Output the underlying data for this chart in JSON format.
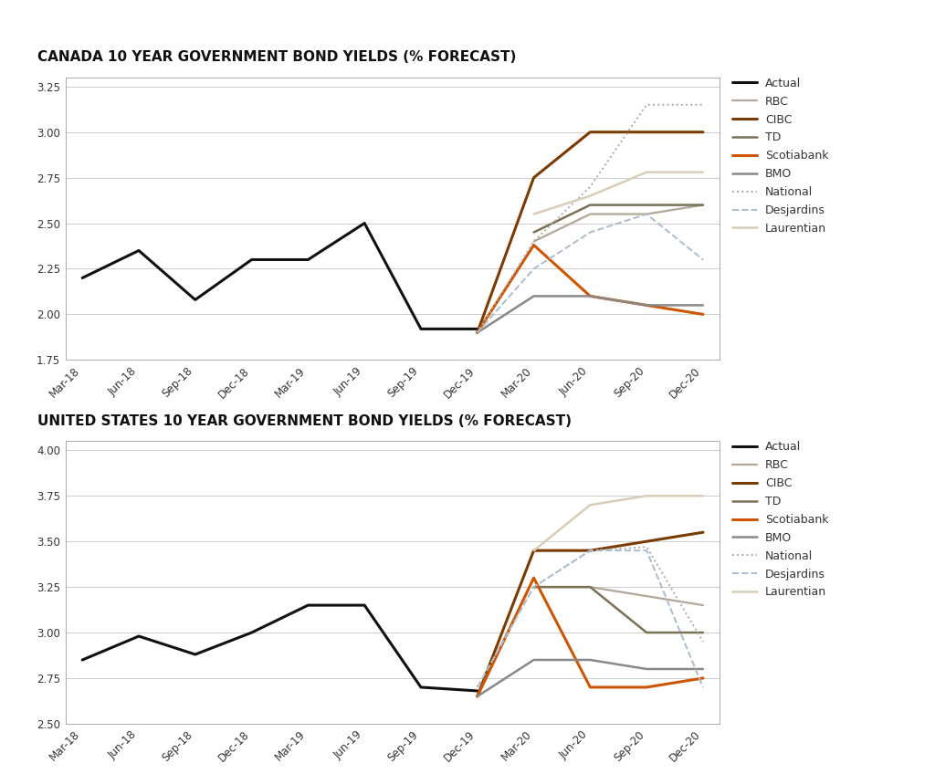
{
  "title_canada": "CANADA 10 YEAR GOVERNMENT BOND YIELDS (% FORECAST)",
  "title_us": "UNITED STATES 10 YEAR GOVERNMENT BOND YIELDS (% FORECAST)",
  "x_labels": [
    "Mar-18",
    "Jun-18",
    "Sep-18",
    "Dec-18",
    "Mar-19",
    "Jun-19",
    "Sep-19",
    "Dec-19",
    "Mar-20",
    "Jun-20",
    "Sep-20",
    "Dec-20"
  ],
  "canada": {
    "Actual": [
      2.2,
      2.35,
      2.08,
      2.3,
      2.3,
      2.5,
      1.92,
      1.92,
      null,
      null,
      null,
      null
    ],
    "RBC": [
      null,
      null,
      null,
      null,
      null,
      null,
      null,
      null,
      2.4,
      2.55,
      2.55,
      2.6
    ],
    "CIBC": [
      null,
      null,
      null,
      null,
      null,
      null,
      null,
      1.9,
      2.75,
      3.0,
      3.0,
      3.0
    ],
    "TD": [
      null,
      null,
      null,
      null,
      null,
      null,
      null,
      null,
      2.45,
      2.6,
      2.6,
      2.6
    ],
    "Scotiabank": [
      null,
      null,
      null,
      null,
      null,
      null,
      null,
      1.9,
      2.38,
      2.1,
      2.05,
      2.0
    ],
    "BMO": [
      null,
      null,
      null,
      null,
      null,
      null,
      null,
      1.9,
      2.1,
      2.1,
      2.05,
      2.05
    ],
    "National": [
      null,
      null,
      null,
      null,
      null,
      null,
      null,
      1.9,
      2.4,
      2.7,
      3.15,
      3.15
    ],
    "Desjardins": [
      null,
      null,
      null,
      null,
      null,
      null,
      null,
      1.9,
      2.25,
      2.45,
      2.55,
      2.3
    ],
    "Laurentian": [
      null,
      null,
      null,
      null,
      null,
      null,
      null,
      null,
      2.55,
      2.65,
      2.78,
      2.78
    ]
  },
  "us": {
    "Actual": [
      2.85,
      2.98,
      2.88,
      3.0,
      3.15,
      3.15,
      2.7,
      2.68,
      null,
      null,
      null,
      null
    ],
    "RBC": [
      null,
      null,
      null,
      null,
      null,
      null,
      null,
      null,
      3.25,
      3.25,
      3.2,
      3.15
    ],
    "CIBC": [
      null,
      null,
      null,
      null,
      null,
      null,
      null,
      2.65,
      3.45,
      3.45,
      3.5,
      3.55
    ],
    "TD": [
      null,
      null,
      null,
      null,
      null,
      null,
      null,
      null,
      3.25,
      3.25,
      3.0,
      3.0
    ],
    "Scotiabank": [
      null,
      null,
      null,
      null,
      null,
      null,
      null,
      2.65,
      3.3,
      2.7,
      2.7,
      2.75
    ],
    "BMO": [
      null,
      null,
      null,
      null,
      null,
      null,
      null,
      2.65,
      2.85,
      2.85,
      2.8,
      2.8
    ],
    "National": [
      null,
      null,
      null,
      null,
      null,
      null,
      null,
      2.7,
      3.25,
      3.45,
      3.47,
      2.95
    ],
    "Desjardins": [
      null,
      null,
      null,
      null,
      null,
      null,
      null,
      2.7,
      3.25,
      3.45,
      3.45,
      2.7
    ],
    "Laurentian": [
      null,
      null,
      null,
      null,
      null,
      null,
      null,
      null,
      3.45,
      3.7,
      3.75,
      3.75
    ]
  },
  "colors": {
    "Actual": {
      "color": "#111111",
      "lw": 2.2,
      "ls": "solid",
      "alpha": 1.0
    },
    "RBC": {
      "color": "#b0a898",
      "lw": 1.6,
      "ls": "solid",
      "alpha": 1.0
    },
    "CIBC": {
      "color": "#7a3b00",
      "lw": 2.2,
      "ls": "solid",
      "alpha": 1.0
    },
    "TD": {
      "color": "#7a7055",
      "lw": 1.8,
      "ls": "solid",
      "alpha": 1.0
    },
    "Scotiabank": {
      "color": "#cc5500",
      "lw": 2.2,
      "ls": "solid",
      "alpha": 1.0
    },
    "BMO": {
      "color": "#888888",
      "lw": 1.8,
      "ls": "solid",
      "alpha": 1.0
    },
    "National": {
      "color": "#aaaaaa",
      "lw": 1.4,
      "ls": "dotted",
      "alpha": 1.0
    },
    "Desjardins": {
      "color": "#aabccc",
      "lw": 1.4,
      "ls": "dashed",
      "alpha": 1.0
    },
    "Laurentian": {
      "color": "#d8cdb8",
      "lw": 1.8,
      "ls": "solid",
      "alpha": 1.0
    }
  },
  "canada_ylim": [
    1.75,
    3.3
  ],
  "canada_yticks": [
    1.75,
    2.0,
    2.25,
    2.5,
    2.75,
    3.0,
    3.25
  ],
  "us_ylim": [
    2.5,
    4.05
  ],
  "us_yticks": [
    2.5,
    2.75,
    3.0,
    3.25,
    3.5,
    3.75,
    4.0
  ]
}
